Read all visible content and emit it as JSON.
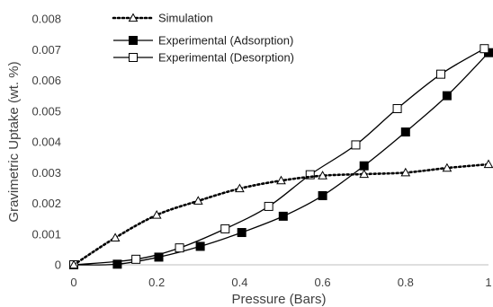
{
  "chart_data": {
    "type": "scatter",
    "title": "",
    "xlabel": "Pressure (Bars)",
    "ylabel": "Gravimetric Uptake  (wt. %)",
    "xlim": [
      0,
      1
    ],
    "ylim": [
      0,
      0.008
    ],
    "xticks": [
      "0",
      "0.2",
      "0.4",
      "0.6",
      "0.8",
      "1"
    ],
    "yticks": [
      "0",
      "0.001",
      "0.002",
      "0.003",
      "0.004",
      "0.005",
      "0.006",
      "0.007",
      "0.008"
    ],
    "grid": false,
    "legend_position": "top-left",
    "series": [
      {
        "name": "Simulation",
        "marker": "open-triangle",
        "line": "dotted",
        "color": "#000000",
        "x": [
          0,
          0.1,
          0.2,
          0.3,
          0.4,
          0.5,
          0.6,
          0.7,
          0.8,
          0.9,
          1.0
        ],
        "y": [
          0,
          0.00088,
          0.00162,
          0.00208,
          0.00248,
          0.00274,
          0.0029,
          0.00295,
          0.003,
          0.00315,
          0.00327
        ]
      },
      {
        "name": "Experimental (Adsorption)",
        "marker": "filled-square",
        "line": "solid",
        "color": "#000000",
        "x": [
          0,
          0.105,
          0.205,
          0.305,
          0.405,
          0.505,
          0.6,
          0.7,
          0.8,
          0.9,
          1.0
        ],
        "y": [
          0,
          2e-05,
          0.00025,
          0.0006,
          0.00105,
          0.00158,
          0.00225,
          0.00322,
          0.00432,
          0.0055,
          0.0069
        ]
      },
      {
        "name": "Experimental (Desorption)",
        "marker": "open-square",
        "line": "solid",
        "color": "#000000",
        "x": [
          0,
          0.15,
          0.255,
          0.365,
          0.47,
          0.57,
          0.68,
          0.78,
          0.885,
          0.99
        ],
        "y": [
          0,
          0.00018,
          0.00055,
          0.00117,
          0.0019,
          0.00293,
          0.0039,
          0.00508,
          0.0062,
          0.00703
        ]
      }
    ]
  }
}
